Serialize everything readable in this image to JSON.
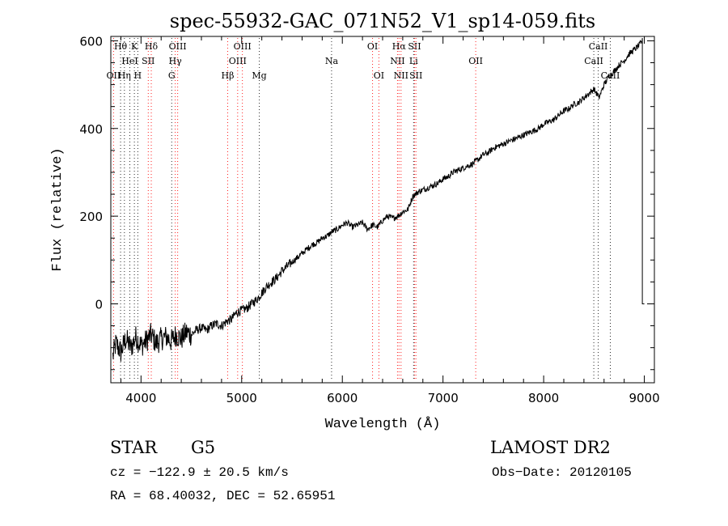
{
  "chart_data": {
    "type": "line",
    "title": "spec-55932-GAC_071N52_V1_sp14-059.fits",
    "xlabel": "Wavelength (Å)",
    "ylabel": "Flux (relative)",
    "xlim": [
      3700,
      9100
    ],
    "ylim": [
      -180,
      610
    ],
    "x_ticks": [
      4000,
      5000,
      6000,
      7000,
      8000,
      9000
    ],
    "y_ticks": [
      0,
      200,
      400,
      600
    ],
    "x_tick_labels": [
      "4000",
      "5000",
      "6000",
      "7000",
      "8000",
      "9000"
    ],
    "y_tick_labels": [
      "0",
      "200",
      "400",
      "600"
    ],
    "grid": false,
    "series": [
      {
        "x": [
          3720,
          3750,
          3800,
          3850,
          3900,
          3950,
          4000,
          4050,
          4100,
          4150,
          4200,
          4250,
          4300,
          4350,
          4400,
          4450,
          4500,
          4550,
          4600,
          4650,
          4700,
          4750,
          4800,
          4850,
          4900,
          4950,
          5000,
          5050,
          5100,
          5150,
          5200,
          5250,
          5300,
          5350,
          5400,
          5450,
          5500,
          5550,
          5600,
          5650,
          5700,
          5750,
          5800,
          5850,
          5900,
          5950,
          6000,
          6050,
          6100,
          6150,
          6200,
          6250,
          6300,
          6350,
          6400,
          6450,
          6500,
          6550,
          6600,
          6650,
          6700,
          6750,
          6800,
          6850,
          6900,
          6950,
          7000,
          7050,
          7100,
          7150,
          7200,
          7250,
          7300,
          7350,
          7400,
          7450,
          7500,
          7550,
          7600,
          7650,
          7700,
          7750,
          7800,
          7850,
          7900,
          7950,
          8000,
          8050,
          8100,
          8150,
          8200,
          8250,
          8300,
          8350,
          8400,
          8450,
          8500,
          8550,
          8600,
          8650,
          8700,
          8750,
          8800,
          8850,
          8900,
          8950,
          8980,
          9000
        ],
        "y": [
          -120,
          -90,
          -110,
          -80,
          -100,
          -75,
          -95,
          -85,
          -70,
          -90,
          -80,
          -75,
          -85,
          -70,
          -80,
          -65,
          -70,
          -60,
          -55,
          -60,
          -50,
          -45,
          -50,
          -40,
          -35,
          -20,
          -15,
          -10,
          0,
          10,
          25,
          40,
          50,
          60,
          75,
          85,
          95,
          105,
          115,
          125,
          135,
          140,
          150,
          155,
          165,
          170,
          180,
          185,
          175,
          180,
          185,
          170,
          180,
          175,
          190,
          200,
          195,
          200,
          210,
          215,
          245,
          255,
          260,
          265,
          270,
          275,
          285,
          290,
          300,
          305,
          310,
          315,
          320,
          330,
          340,
          345,
          355,
          360,
          365,
          370,
          375,
          380,
          385,
          390,
          395,
          400,
          410,
          415,
          420,
          430,
          440,
          445,
          455,
          460,
          470,
          480,
          490,
          470,
          500,
          520,
          530,
          545,
          555,
          570,
          580,
          590,
          600,
          0
        ]
      }
    ],
    "line_marks": [
      {
        "label": "Hθ",
        "x": 3797,
        "row": 0
      },
      {
        "label": "K",
        "x": 3934,
        "row": 0
      },
      {
        "label": "Hδ",
        "x": 4102,
        "row": 0
      },
      {
        "label": "OIII",
        "x": 4364,
        "row": 0
      },
      {
        "label": "OIII",
        "x": 5007,
        "row": 0
      },
      {
        "label": "OI",
        "x": 6300,
        "row": 0
      },
      {
        "label": "Hα",
        "x": 6563,
        "row": 0
      },
      {
        "label": "SII",
        "x": 6717,
        "row": 0
      },
      {
        "label": "CaII",
        "x": 8542,
        "row": 0
      },
      {
        "label": "HeI",
        "x": 3889,
        "row": 1
      },
      {
        "label": "SII",
        "x": 4072,
        "row": 1
      },
      {
        "label": "Hγ",
        "x": 4340,
        "row": 1
      },
      {
        "label": "OIII",
        "x": 4960,
        "row": 1
      },
      {
        "label": "Na",
        "x": 5893,
        "row": 1
      },
      {
        "label": "NII",
        "x": 6548,
        "row": 1
      },
      {
        "label": "Li",
        "x": 6708,
        "row": 1
      },
      {
        "label": "OII",
        "x": 7325,
        "row": 1
      },
      {
        "label": "CaII",
        "x": 8498,
        "row": 1
      },
      {
        "label": "OII",
        "x": 3727,
        "row": 2
      },
      {
        "label": "Hη",
        "x": 3835,
        "row": 2
      },
      {
        "label": "H",
        "x": 3968,
        "row": 2
      },
      {
        "label": "G",
        "x": 4305,
        "row": 2
      },
      {
        "label": "Hβ",
        "x": 4861,
        "row": 2
      },
      {
        "label": "Mg",
        "x": 5175,
        "row": 2
      },
      {
        "label": "OI",
        "x": 6363,
        "row": 2
      },
      {
        "label": "NII",
        "x": 6583,
        "row": 2
      },
      {
        "label": "SII",
        "x": 6731,
        "row": 2
      },
      {
        "label": "CaII",
        "x": 8662,
        "row": 2
      }
    ],
    "line_colors": {
      "emission": "#ff2020",
      "absorption": "#2a2a2a"
    },
    "data_color": "#000000"
  },
  "info": {
    "class": "STAR",
    "subclass": "G5",
    "survey": "LAMOST DR2",
    "cz": "cz = −122.9 ± 20.5 km/s",
    "obs_date": "Obs−Date: 20120105",
    "coords": "RA =  68.40032, DEC =  52.65951"
  }
}
